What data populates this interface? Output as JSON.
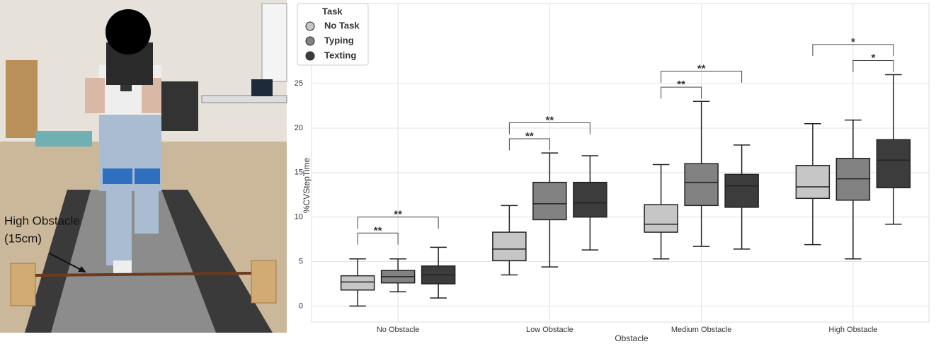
{
  "photo": {
    "annotation": [
      "High Obstacle",
      "(15cm)"
    ]
  },
  "chart_data": {
    "type": "box",
    "x_label": "Obstacle",
    "y_label": "%CVStepTime",
    "categories": [
      "No Obstacle",
      "Low Obstacle",
      "Medium Obstacle",
      "High Obstacle"
    ],
    "legend_title": "Task",
    "legend": "upper left",
    "grid": true,
    "ylim": [
      -1.8,
      34
    ],
    "yticks": [
      0,
      5,
      10,
      15,
      20,
      25
    ],
    "series": [
      {
        "name": "No Task",
        "color": "#c6c6c6",
        "whislo": [
          0,
          3.5,
          5.3,
          6.9
        ],
        "q1": [
          1.8,
          5.1,
          8.3,
          12.1
        ],
        "med": [
          2.7,
          6.4,
          9.2,
          13.4
        ],
        "q3": [
          3.4,
          8.3,
          11.4,
          15.8
        ],
        "whishi": [
          5.3,
          11.3,
          15.9,
          20.5
        ]
      },
      {
        "name": "Typing",
        "color": "#828282",
        "whislo": [
          1.6,
          4.4,
          6.7,
          5.3
        ],
        "q1": [
          2.6,
          9.7,
          11.3,
          11.9
        ],
        "med": [
          3.3,
          11.5,
          13.9,
          14.3
        ],
        "q3": [
          4.0,
          13.9,
          16.0,
          16.6
        ],
        "whishi": [
          5.3,
          17.2,
          23.0,
          20.9
        ]
      },
      {
        "name": "Texting",
        "color": "#3c3c3c",
        "whislo": [
          0.9,
          6.3,
          6.4,
          9.2
        ],
        "q1": [
          2.5,
          10.0,
          11.1,
          13.3
        ],
        "med": [
          3.5,
          11.6,
          13.5,
          16.4
        ],
        "q3": [
          4.5,
          13.9,
          14.8,
          18.7
        ],
        "whishi": [
          6.6,
          16.9,
          18.1,
          26.0
        ]
      }
    ],
    "brackets": [
      {
        "category": "No Obstacle",
        "from": "No Task",
        "to": "Typing",
        "label": "**"
      },
      {
        "category": "No Obstacle",
        "from": "No Task",
        "to": "Texting",
        "label": "**"
      },
      {
        "category": "Low Obstacle",
        "from": "No Task",
        "to": "Typing",
        "label": "**"
      },
      {
        "category": "Low Obstacle",
        "from": "No Task",
        "to": "Texting",
        "label": "**"
      },
      {
        "category": "Medium Obstacle",
        "from": "No Task",
        "to": "Typing",
        "label": "**"
      },
      {
        "category": "Medium Obstacle",
        "from": "No Task",
        "to": "Texting",
        "label": "**"
      },
      {
        "category": "High Obstacle",
        "from": "Typing",
        "to": "Texting",
        "label": "*"
      },
      {
        "category": "High Obstacle",
        "from": "No Task",
        "to": "Texting",
        "label": "*"
      }
    ]
  }
}
